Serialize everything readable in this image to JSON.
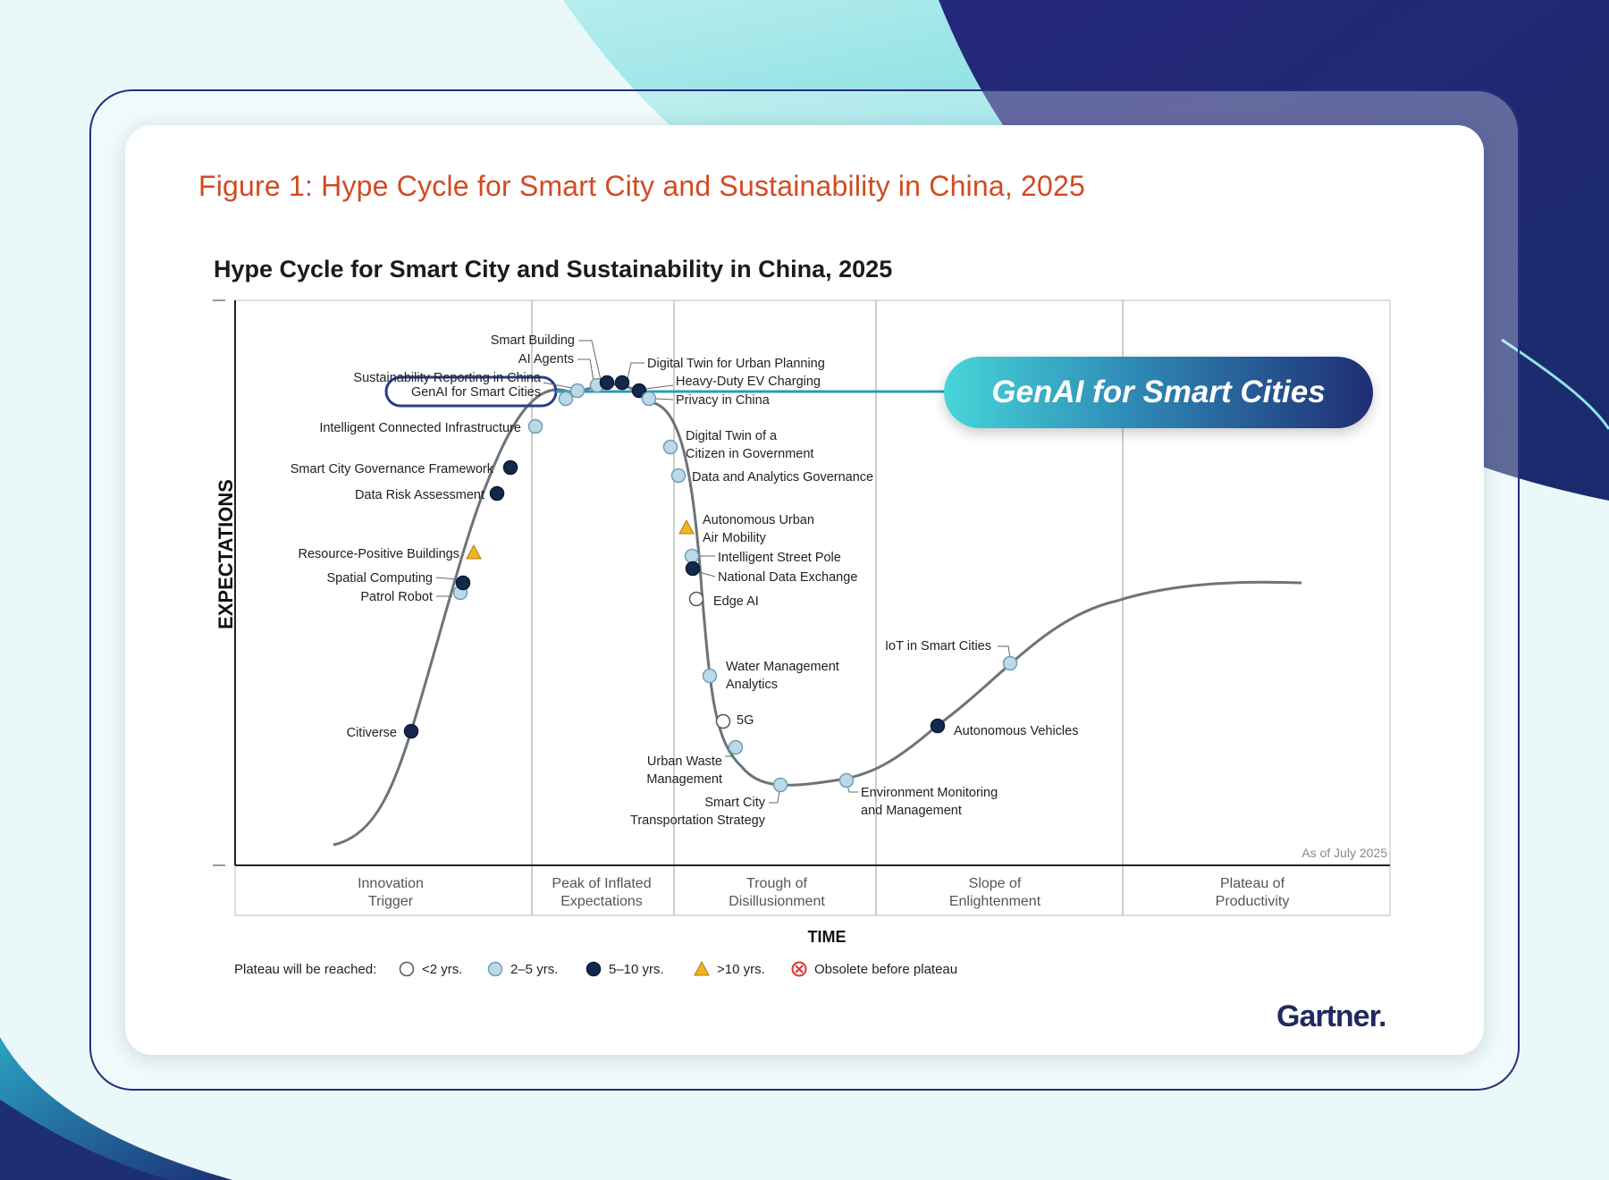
{
  "figure_title": "Figure 1: Hype Cycle for Smart City and Sustainability in China, 2025",
  "callout": {
    "label": "GenAI for Smart Cities"
  },
  "logo": "Gartner.",
  "colors": {
    "figure_title": "#d24a22",
    "under_2_yrs": "#ffffff",
    "two_to_five_yrs": "#bcd9e8",
    "five_to_ten_yrs": "#13294b",
    "over_10_yrs": "#f0b323",
    "obsolete": "#e0312f",
    "highlight": "#46d6d8",
    "curve": "#6b7479"
  },
  "chart_data": {
    "type": "hype-cycle",
    "title": "Hype Cycle for Smart City and Sustainability in China, 2025",
    "xlabel": "TIME",
    "ylabel": "EXPECTATIONS",
    "note": "As of July 2025",
    "phases": [
      "Innovation\nTrigger",
      "Peak of Inflated\nExpectations",
      "Trough of\nDisillusionment",
      "Slope of\nEnlightenment",
      "Plateau of\nProductivity"
    ],
    "legend_title": "Plateau will be reached:",
    "legend": [
      {
        "key": "lt2",
        "label": "<2 yrs."
      },
      {
        "key": "2to5",
        "label": "2–5 yrs."
      },
      {
        "key": "5to10",
        "label": "5–10 yrs."
      },
      {
        "key": "gt10",
        "label": ">10 yrs."
      },
      {
        "key": "obsolete",
        "label": "Obsolete before plateau"
      }
    ],
    "highlighted": "GenAI for Smart Cities",
    "points": [
      {
        "name": "Citiverse",
        "phase": "Innovation Trigger",
        "plateau": "5to10"
      },
      {
        "name": "Patrol Robot",
        "phase": "Innovation Trigger",
        "plateau": "2to5"
      },
      {
        "name": "Spatial Computing",
        "phase": "Innovation Trigger",
        "plateau": "5to10"
      },
      {
        "name": "Resource-Positive Buildings",
        "phase": "Innovation Trigger",
        "plateau": "gt10"
      },
      {
        "name": "Data Risk Assessment",
        "phase": "Innovation Trigger",
        "plateau": "5to10"
      },
      {
        "name": "Smart City Governance Framework",
        "phase": "Innovation Trigger",
        "plateau": "5to10"
      },
      {
        "name": "Intelligent Connected Infrastructure",
        "phase": "Peak of Inflated Expectations",
        "plateau": "2to5"
      },
      {
        "name": "GenAI for Smart Cities",
        "phase": "Peak of Inflated Expectations",
        "plateau": "2to5"
      },
      {
        "name": "Sustainability Reporting in China",
        "phase": "Peak of Inflated Expectations",
        "plateau": "2to5"
      },
      {
        "name": "AI Agents",
        "phase": "Peak of Inflated Expectations",
        "plateau": "2to5"
      },
      {
        "name": "Smart Building",
        "phase": "Peak of Inflated Expectations",
        "plateau": "5to10"
      },
      {
        "name": "Digital Twin for Urban Planning",
        "phase": "Peak of Inflated Expectations",
        "plateau": "5to10"
      },
      {
        "name": "Heavy-Duty EV Charging",
        "phase": "Peak of Inflated Expectations",
        "plateau": "5to10"
      },
      {
        "name": "Privacy in China",
        "phase": "Peak of Inflated Expectations",
        "plateau": "2to5"
      },
      {
        "name": "Digital Twin of a\nCitizen in Government",
        "phase": "Trough of Disillusionment",
        "plateau": "2to5"
      },
      {
        "name": "Data and Analytics Governance",
        "phase": "Trough of Disillusionment",
        "plateau": "2to5"
      },
      {
        "name": "Autonomous Urban\nAir Mobility",
        "phase": "Trough of Disillusionment",
        "plateau": "gt10"
      },
      {
        "name": "Intelligent Street Pole",
        "phase": "Trough of Disillusionment",
        "plateau": "2to5"
      },
      {
        "name": "National Data Exchange",
        "phase": "Trough of Disillusionment",
        "plateau": "5to10"
      },
      {
        "name": "Edge AI",
        "phase": "Trough of Disillusionment",
        "plateau": "lt2"
      },
      {
        "name": "Water Management\nAnalytics",
        "phase": "Trough of Disillusionment",
        "plateau": "2to5"
      },
      {
        "name": "5G",
        "phase": "Trough of Disillusionment",
        "plateau": "lt2"
      },
      {
        "name": "Urban Waste\nManagement",
        "phase": "Trough of Disillusionment",
        "plateau": "2to5"
      },
      {
        "name": "Smart City\nTransportation Strategy",
        "phase": "Trough of Disillusionment",
        "plateau": "2to5"
      },
      {
        "name": "Environment Monitoring\nand Management",
        "phase": "Slope of Enlightenment",
        "plateau": "2to5"
      },
      {
        "name": "Autonomous Vehicles",
        "phase": "Slope of Enlightenment",
        "plateau": "5to10"
      },
      {
        "name": "IoT in Smart Cities",
        "phase": "Slope of Enlightenment",
        "plateau": "2to5"
      }
    ]
  }
}
